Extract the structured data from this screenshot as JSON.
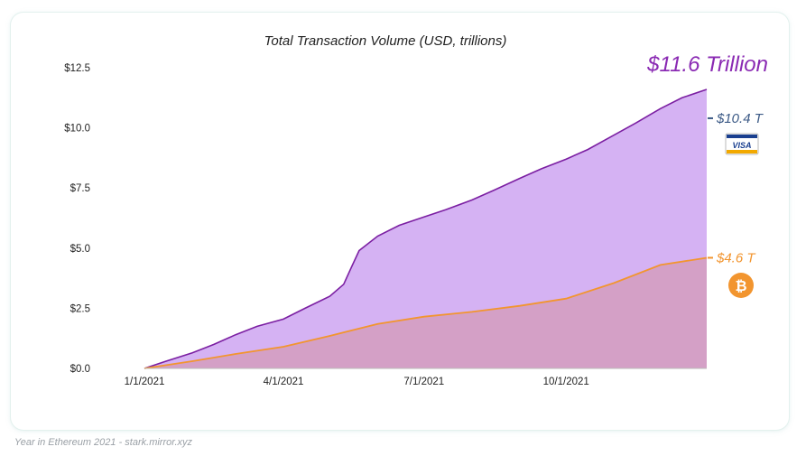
{
  "chart_data": {
    "type": "area",
    "title": "Total Transaction Volume (USD, trillions)",
    "xlabel": "",
    "ylabel": "",
    "x_ticks": [
      {
        "label": "1/1/2021",
        "x": "2021-01-01"
      },
      {
        "label": "4/1/2021",
        "x": "2021-04-01"
      },
      {
        "label": "7/1/2021",
        "x": "2021-07-01"
      },
      {
        "label": "10/1/2021",
        "x": "2021-10-01"
      }
    ],
    "y_ticks": [
      {
        "label": "$0.0",
        "value": 0
      },
      {
        "label": "$2.5",
        "value": 2.5
      },
      {
        "label": "$5.0",
        "value": 5.0
      },
      {
        "label": "$7.5",
        "value": 7.5
      },
      {
        "label": "$10.0",
        "value": 10.0
      },
      {
        "label": "$12.5",
        "value": 12.5
      }
    ],
    "xlim": [
      "2021-01-01",
      "2021-12-31"
    ],
    "ylim": [
      0,
      12.5
    ],
    "grid": false,
    "series": [
      {
        "color": "#7b1fa2",
        "fill": "#d5b2f3",
        "points": [
          [
            "2021-01-01",
            0.0
          ],
          [
            "2021-01-15",
            0.3
          ],
          [
            "2021-02-01",
            0.65
          ],
          [
            "2021-02-15",
            1.0
          ],
          [
            "2021-03-01",
            1.4
          ],
          [
            "2021-03-15",
            1.75
          ],
          [
            "2021-04-01",
            2.05
          ],
          [
            "2021-04-15",
            2.5
          ],
          [
            "2021-05-01",
            3.0
          ],
          [
            "2021-05-10",
            3.5
          ],
          [
            "2021-05-15",
            4.2
          ],
          [
            "2021-05-20",
            4.9
          ],
          [
            "2021-06-01",
            5.5
          ],
          [
            "2021-06-15",
            5.95
          ],
          [
            "2021-07-01",
            6.3
          ],
          [
            "2021-07-15",
            6.6
          ],
          [
            "2021-08-01",
            7.0
          ],
          [
            "2021-08-15",
            7.4
          ],
          [
            "2021-09-01",
            7.9
          ],
          [
            "2021-09-15",
            8.3
          ],
          [
            "2021-10-01",
            8.7
          ],
          [
            "2021-10-15",
            9.1
          ],
          [
            "2021-11-01",
            9.7
          ],
          [
            "2021-11-15",
            10.2
          ],
          [
            "2021-12-01",
            10.8
          ],
          [
            "2021-12-15",
            11.25
          ],
          [
            "2021-12-31",
            11.6
          ]
        ]
      },
      {
        "color": "#f2952f",
        "fill": "#d4a0c6",
        "points": [
          [
            "2021-01-01",
            0.0
          ],
          [
            "2021-02-01",
            0.3
          ],
          [
            "2021-03-01",
            0.6
          ],
          [
            "2021-04-01",
            0.9
          ],
          [
            "2021-05-01",
            1.35
          ],
          [
            "2021-06-01",
            1.85
          ],
          [
            "2021-07-01",
            2.15
          ],
          [
            "2021-08-01",
            2.35
          ],
          [
            "2021-09-01",
            2.6
          ],
          [
            "2021-10-01",
            2.9
          ],
          [
            "2021-11-01",
            3.55
          ],
          [
            "2021-12-01",
            4.3
          ],
          [
            "2021-12-31",
            4.6
          ]
        ]
      }
    ],
    "annotations": {
      "total_label": "$11.6 Trillion",
      "total_color": "#8a2ab3",
      "visa_label": "$10.4 T",
      "visa_value": 10.4,
      "visa_color": "#3c5a86",
      "visa_icon": "visa-card-icon",
      "visa_text": "VISA",
      "bitcoin_label": "$4.6 T",
      "bitcoin_value": 4.6,
      "bitcoin_color": "#f2952f",
      "bitcoin_icon": "bitcoin-icon",
      "bitcoin_symbol": "₿"
    }
  },
  "footer": {
    "source": "Year in Ethereum 2021 - stark.mirror.xyz"
  }
}
